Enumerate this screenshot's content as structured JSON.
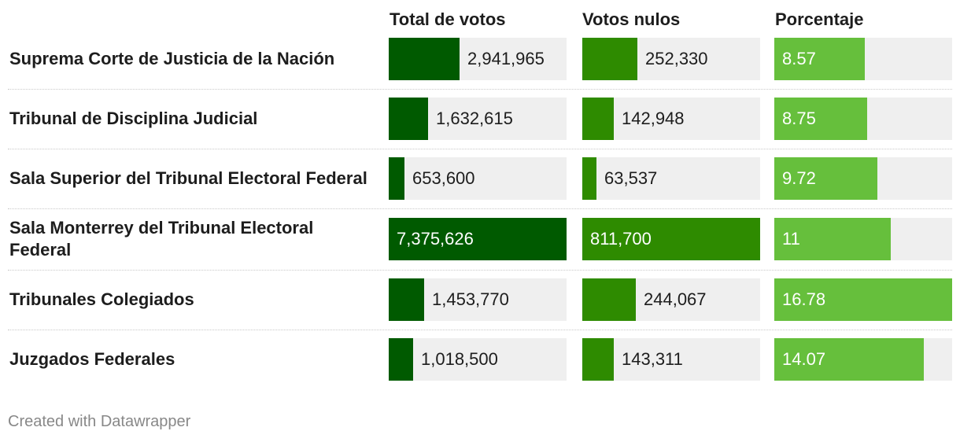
{
  "headers": {
    "total": "Total de votos",
    "nulos": "Votos nulos",
    "porcentaje": "Porcentaje"
  },
  "colors": {
    "total": "#005a00",
    "nulos": "#2e8b00",
    "porcentaje": "#66bf3c",
    "track": "#efefef"
  },
  "chart_data": {
    "type": "table",
    "columns": [
      "Total de votos",
      "Votos nulos",
      "Porcentaje"
    ],
    "rows": [
      {
        "label": "Suprema Corte de Justicia de la Nación",
        "total": 2941965,
        "total_text": "2,941,965",
        "nulos": 252330,
        "nulos_text": "252,330",
        "porcentaje": 8.57,
        "porcentaje_text": "8.57"
      },
      {
        "label": "Tribunal de Disciplina Judicial",
        "total": 1632615,
        "total_text": "1,632,615",
        "nulos": 142948,
        "nulos_text": "142,948",
        "porcentaje": 8.75,
        "porcentaje_text": "8.75"
      },
      {
        "label": "Sala Superior del Tribunal Electoral Federal",
        "total": 653600,
        "total_text": "653,600",
        "nulos": 63537,
        "nulos_text": "63,537",
        "porcentaje": 9.72,
        "porcentaje_text": "9.72"
      },
      {
        "label": "Sala Monterrey del Tribunal Electoral Federal",
        "total": 7375626,
        "total_text": "7,375,626",
        "nulos": 811700,
        "nulos_text": "811,700",
        "porcentaje": 11,
        "porcentaje_text": "11"
      },
      {
        "label": "Tribunales Colegiados",
        "total": 1453770,
        "total_text": "1,453,770",
        "nulos": 244067,
        "nulos_text": "244,067",
        "porcentaje": 16.78,
        "porcentaje_text": "16.78"
      },
      {
        "label": "Juzgados Federales",
        "total": 1018500,
        "total_text": "1,018,500",
        "nulos": 143311,
        "nulos_text": "143,311",
        "porcentaje": 14.07,
        "porcentaje_text": "14.07"
      }
    ]
  },
  "footer": {
    "credit": "Created with Datawrapper"
  }
}
